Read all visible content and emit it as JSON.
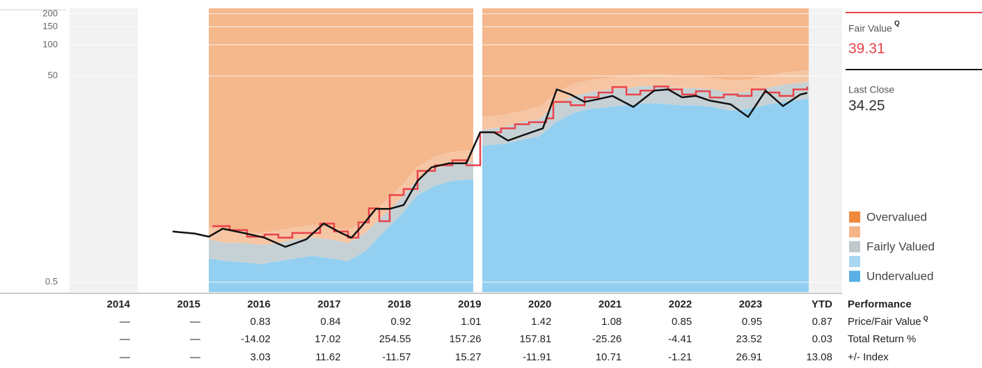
{
  "chart_data": {
    "type": "valuation",
    "ylog": true,
    "ylim": [
      0.4,
      226
    ],
    "yticks": [
      0.5,
      50,
      100,
      150,
      200
    ],
    "xlim": [
      2014,
      2025.1
    ],
    "grid": true,
    "bands": {
      "x": [
        2016,
        2016.25,
        2016.5,
        2016.75,
        2017,
        2017.25,
        2017.5,
        2017.75,
        2018,
        2018.25,
        2018.5,
        2018.75,
        2019,
        2019.25,
        2019.5,
        2019.8,
        2019.87,
        2019.93,
        2020.25,
        2020.5,
        2020.75,
        2021,
        2021.25,
        2021.5,
        2021.75,
        2022,
        2022.25,
        2022.5,
        2022.75,
        2023,
        2023.25,
        2023.5,
        2023.75,
        2024,
        2024.25,
        2024.62
      ],
      "boundaries": [
        [
          0.85,
          0.8,
          0.78,
          0.75,
          0.8,
          0.85,
          0.9,
          0.85,
          0.8,
          1.0,
          1.5,
          2.2,
          3.5,
          4.3,
          4.8,
          5.0,
          null,
          10.5,
          11,
          12,
          13,
          18,
          22,
          24,
          25,
          26,
          27,
          27,
          26,
          26,
          25,
          23,
          24,
          26,
          28,
          30
        ],
        [
          1.3,
          1.2,
          1.2,
          1.15,
          1.2,
          1.3,
          1.35,
          1.3,
          1.2,
          1.5,
          2.2,
          3.2,
          5.0,
          6.3,
          7.0,
          7.4,
          null,
          15,
          16,
          18,
          19,
          27,
          32,
          35,
          37,
          38,
          40,
          40,
          38,
          38,
          37,
          34,
          35,
          38,
          41,
          44
        ],
        [
          1.7,
          1.6,
          1.55,
          1.5,
          1.6,
          1.7,
          1.8,
          1.7,
          1.6,
          2.0,
          2.9,
          4.2,
          6.6,
          8.2,
          9.2,
          9.6,
          null,
          20,
          21,
          23,
          25,
          35,
          42,
          46,
          48,
          50,
          52,
          52,
          50,
          50,
          48,
          45,
          46,
          50,
          54,
          57
        ]
      ],
      "colors": [
        "#93cff0",
        "#c6d1d5",
        "#f6c6a4",
        "#f5b78c"
      ]
    },
    "price": {
      "label": "Last Close",
      "current": 34.25,
      "color": "#111111",
      "x": [
        2015.48,
        2015.8,
        2016.0,
        2016.2,
        2016.5,
        2016.8,
        2017.1,
        2017.4,
        2017.65,
        2017.9,
        2018.05,
        2018.2,
        2018.4,
        2018.6,
        2018.8,
        2019.0,
        2019.2,
        2019.45,
        2019.7,
        2019.9,
        2020.1,
        2020.3,
        2020.5,
        2020.8,
        2021.0,
        2021.2,
        2021.4,
        2021.6,
        2021.8,
        2022.1,
        2022.4,
        2022.6,
        2022.8,
        2023.0,
        2023.2,
        2023.5,
        2023.75,
        2024.0,
        2024.25,
        2024.5,
        2024.6
      ],
      "values": [
        1.55,
        1.48,
        1.38,
        1.65,
        1.5,
        1.35,
        1.1,
        1.3,
        1.85,
        1.5,
        1.35,
        1.75,
        2.57,
        2.57,
        2.8,
        4.8,
        6.5,
        7.1,
        7.1,
        14.2,
        14.2,
        11.8,
        13.2,
        15.5,
        37,
        33,
        28,
        29.8,
        32,
        25,
        36,
        37,
        31,
        32,
        28.8,
        26.5,
        20,
        36,
        25.5,
        33,
        34.25
      ]
    },
    "fair_value": {
      "label": "Fair Value",
      "badge": "Q",
      "current": 39.31,
      "color": "#e8434a",
      "x": [
        2016.05,
        2016.3,
        2016.55,
        2016.8,
        2017.0,
        2017.2,
        2017.6,
        2017.8,
        2018.0,
        2018.15,
        2018.3,
        2018.45,
        2018.6,
        2018.8,
        2019.0,
        2019.25,
        2019.5,
        2019.7,
        2019.9,
        2020.2,
        2020.4,
        2020.6,
        2020.85,
        2020.95,
        2021.2,
        2021.4,
        2021.6,
        2021.8,
        2022.0,
        2022.2,
        2022.4,
        2022.6,
        2022.8,
        2023.0,
        2023.2,
        2023.4,
        2023.6,
        2023.8,
        2024.0,
        2024.2,
        2024.4,
        2024.6
      ],
      "values": [
        1.75,
        1.6,
        1.38,
        1.45,
        1.35,
        1.5,
        1.85,
        1.55,
        1.35,
        1.9,
        2.6,
        1.95,
        3.5,
        4.0,
        6.0,
        6.8,
        7.6,
        6.8,
        14.2,
        15.5,
        17,
        17.8,
        19.4,
        28,
        26,
        31,
        34.5,
        39,
        33,
        36,
        39.5,
        37,
        33,
        35.5,
        30.9,
        33,
        32,
        37,
        34.5,
        32,
        37,
        39.31
      ]
    },
    "legend": [
      {
        "name": "Overvalued",
        "color": "#f0893d"
      },
      {
        "name": null,
        "color": "#f5b488"
      },
      {
        "name": "Fairly Valued",
        "color": "#bfc9cc"
      },
      {
        "name": null,
        "color": "#a9d7f1"
      },
      {
        "name": "Undervalued",
        "color": "#5ab0e6"
      }
    ],
    "table": {
      "title": "Performance",
      "columns": [
        "2014",
        "2015",
        "2016",
        "2017",
        "2018",
        "2019",
        "2020",
        "2021",
        "2022",
        "2023",
        "YTD"
      ],
      "rows": [
        {
          "label": "Price/Fair Value",
          "badge": "Q",
          "values": [
            "—",
            "—",
            0.83,
            0.84,
            0.92,
            1.01,
            1.42,
            1.08,
            0.85,
            0.95,
            0.87
          ]
        },
        {
          "label": "Total Return %",
          "values": [
            "—",
            "—",
            -14.02,
            17.02,
            254.55,
            157.26,
            157.81,
            -25.26,
            -4.41,
            23.52,
            0.03
          ]
        },
        {
          "label": "+/- Index",
          "values": [
            "—",
            "—",
            3.03,
            11.62,
            -11.57,
            15.27,
            -11.91,
            10.71,
            -1.21,
            26.91,
            13.08
          ]
        }
      ]
    }
  }
}
